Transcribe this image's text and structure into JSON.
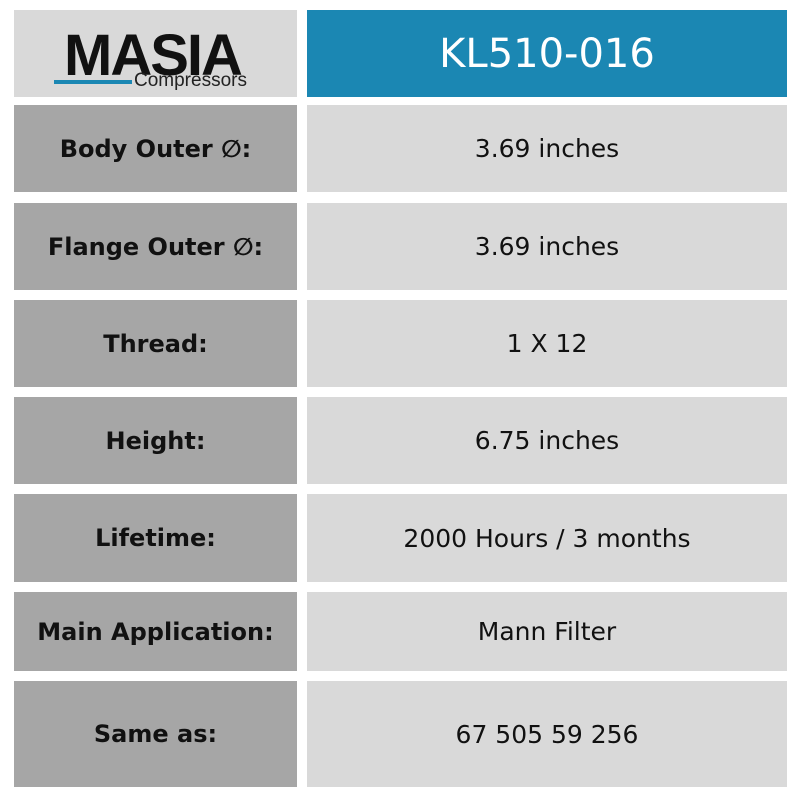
{
  "header": {
    "logo": {
      "brand": "MASIA",
      "tagline": "Compressors"
    },
    "title": "KL510-016"
  },
  "table": {
    "rows": [
      {
        "label": "Body Outer ∅:",
        "value": "3.69 inches"
      },
      {
        "label": "Flange Outer ∅:",
        "value": "3.69 inches"
      },
      {
        "label": "Thread:",
        "value": "1 X 12"
      },
      {
        "label": "Height:",
        "value": "6.75 inches"
      },
      {
        "label": "Lifetime:",
        "value": "2000 Hours / 3 months"
      },
      {
        "label": "Main Application:",
        "value": "Mann Filter"
      },
      {
        "label": "Same as:",
        "value": "67 505 59 256"
      }
    ]
  }
}
